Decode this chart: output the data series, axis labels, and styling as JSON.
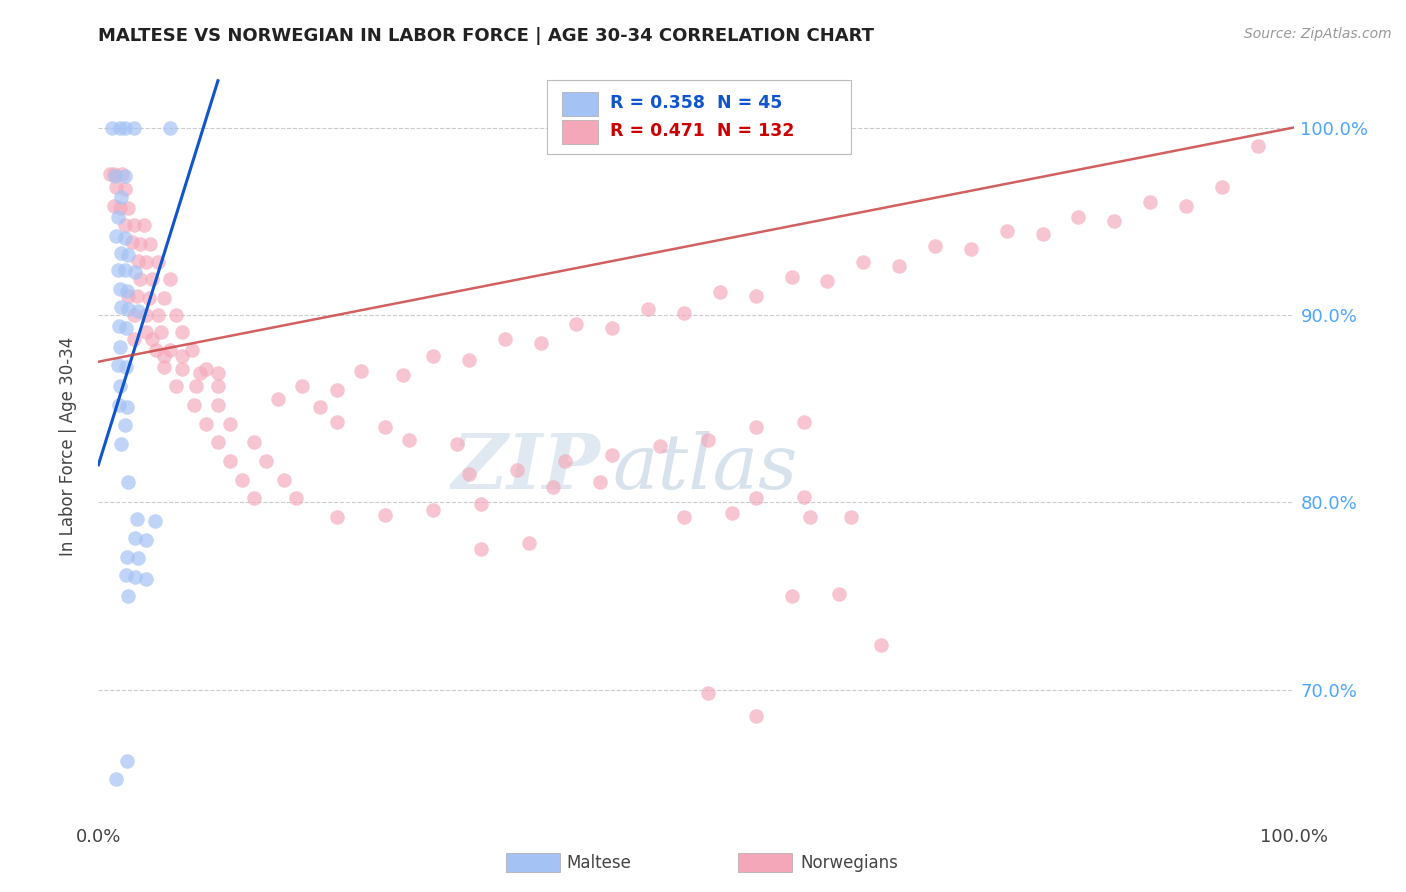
{
  "title": "MALTESE VS NORWEGIAN IN LABOR FORCE | AGE 30-34 CORRELATION CHART",
  "source": "Source: ZipAtlas.com",
  "ylabel": "In Labor Force | Age 30-34",
  "legend_blue_r": "0.358",
  "legend_blue_n": "45",
  "legend_pink_r": "0.471",
  "legend_pink_n": "132",
  "legend_label_blue": "Maltese",
  "legend_label_pink": "Norwegians",
  "blue_color": "#a4c2f4",
  "pink_color": "#f4a7b9",
  "blue_line_color": "#1155cc",
  "pink_line_color": "#cc4444",
  "title_color": "#222222",
  "source_color": "#999999",
  "axis_label_color": "#444444",
  "tick_color": "#444444",
  "right_tick_color": "#4da6ff",
  "grid_color": "#cccccc",
  "blue_scatter": [
    [
      0.011,
      1.0
    ],
    [
      0.018,
      1.0
    ],
    [
      0.022,
      1.0
    ],
    [
      0.03,
      1.0
    ],
    [
      0.06,
      1.0
    ],
    [
      0.014,
      0.974
    ],
    [
      0.022,
      0.974
    ],
    [
      0.019,
      0.963
    ],
    [
      0.016,
      0.952
    ],
    [
      0.015,
      0.942
    ],
    [
      0.022,
      0.941
    ],
    [
      0.019,
      0.933
    ],
    [
      0.025,
      0.932
    ],
    [
      0.016,
      0.924
    ],
    [
      0.022,
      0.924
    ],
    [
      0.031,
      0.923
    ],
    [
      0.018,
      0.914
    ],
    [
      0.024,
      0.913
    ],
    [
      0.019,
      0.904
    ],
    [
      0.025,
      0.903
    ],
    [
      0.033,
      0.902
    ],
    [
      0.017,
      0.894
    ],
    [
      0.023,
      0.893
    ],
    [
      0.018,
      0.883
    ],
    [
      0.016,
      0.873
    ],
    [
      0.023,
      0.872
    ],
    [
      0.018,
      0.862
    ],
    [
      0.017,
      0.852
    ],
    [
      0.024,
      0.851
    ],
    [
      0.022,
      0.841
    ],
    [
      0.019,
      0.831
    ],
    [
      0.025,
      0.811
    ],
    [
      0.032,
      0.791
    ],
    [
      0.047,
      0.79
    ],
    [
      0.031,
      0.781
    ],
    [
      0.04,
      0.78
    ],
    [
      0.024,
      0.771
    ],
    [
      0.033,
      0.77
    ],
    [
      0.023,
      0.761
    ],
    [
      0.031,
      0.76
    ],
    [
      0.04,
      0.759
    ],
    [
      0.025,
      0.75
    ],
    [
      0.024,
      0.662
    ],
    [
      0.015,
      0.652
    ]
  ],
  "pink_scatter": [
    [
      0.01,
      0.975
    ],
    [
      0.013,
      0.975
    ],
    [
      0.02,
      0.975
    ],
    [
      0.015,
      0.968
    ],
    [
      0.022,
      0.967
    ],
    [
      0.013,
      0.958
    ],
    [
      0.018,
      0.957
    ],
    [
      0.025,
      0.957
    ],
    [
      0.022,
      0.948
    ],
    [
      0.03,
      0.948
    ],
    [
      0.038,
      0.948
    ],
    [
      0.028,
      0.939
    ],
    [
      0.035,
      0.938
    ],
    [
      0.043,
      0.938
    ],
    [
      0.033,
      0.929
    ],
    [
      0.04,
      0.928
    ],
    [
      0.05,
      0.928
    ],
    [
      0.035,
      0.919
    ],
    [
      0.045,
      0.919
    ],
    [
      0.06,
      0.919
    ],
    [
      0.025,
      0.91
    ],
    [
      0.032,
      0.91
    ],
    [
      0.042,
      0.909
    ],
    [
      0.055,
      0.909
    ],
    [
      0.03,
      0.9
    ],
    [
      0.04,
      0.9
    ],
    [
      0.05,
      0.9
    ],
    [
      0.065,
      0.9
    ],
    [
      0.04,
      0.891
    ],
    [
      0.052,
      0.891
    ],
    [
      0.07,
      0.891
    ],
    [
      0.048,
      0.881
    ],
    [
      0.06,
      0.881
    ],
    [
      0.078,
      0.881
    ],
    [
      0.055,
      0.872
    ],
    [
      0.07,
      0.871
    ],
    [
      0.09,
      0.871
    ],
    [
      0.065,
      0.862
    ],
    [
      0.082,
      0.862
    ],
    [
      0.1,
      0.862
    ],
    [
      0.08,
      0.852
    ],
    [
      0.1,
      0.852
    ],
    [
      0.09,
      0.842
    ],
    [
      0.11,
      0.842
    ],
    [
      0.1,
      0.832
    ],
    [
      0.13,
      0.832
    ],
    [
      0.11,
      0.822
    ],
    [
      0.14,
      0.822
    ],
    [
      0.12,
      0.812
    ],
    [
      0.155,
      0.812
    ],
    [
      0.13,
      0.802
    ],
    [
      0.165,
      0.802
    ],
    [
      0.03,
      0.887
    ],
    [
      0.045,
      0.887
    ],
    [
      0.055,
      0.878
    ],
    [
      0.07,
      0.878
    ],
    [
      0.085,
      0.869
    ],
    [
      0.1,
      0.869
    ],
    [
      0.15,
      0.855
    ],
    [
      0.185,
      0.851
    ],
    [
      0.2,
      0.843
    ],
    [
      0.24,
      0.84
    ],
    [
      0.26,
      0.833
    ],
    [
      0.3,
      0.831
    ],
    [
      0.17,
      0.862
    ],
    [
      0.2,
      0.86
    ],
    [
      0.22,
      0.87
    ],
    [
      0.255,
      0.868
    ],
    [
      0.28,
      0.878
    ],
    [
      0.31,
      0.876
    ],
    [
      0.34,
      0.887
    ],
    [
      0.37,
      0.885
    ],
    [
      0.4,
      0.895
    ],
    [
      0.43,
      0.893
    ],
    [
      0.46,
      0.903
    ],
    [
      0.49,
      0.901
    ],
    [
      0.52,
      0.912
    ],
    [
      0.55,
      0.91
    ],
    [
      0.58,
      0.92
    ],
    [
      0.61,
      0.918
    ],
    [
      0.64,
      0.928
    ],
    [
      0.67,
      0.926
    ],
    [
      0.7,
      0.937
    ],
    [
      0.73,
      0.935
    ],
    [
      0.76,
      0.945
    ],
    [
      0.79,
      0.943
    ],
    [
      0.82,
      0.952
    ],
    [
      0.85,
      0.95
    ],
    [
      0.88,
      0.96
    ],
    [
      0.91,
      0.958
    ],
    [
      0.94,
      0.968
    ],
    [
      0.97,
      0.99
    ],
    [
      0.31,
      0.815
    ],
    [
      0.35,
      0.817
    ],
    [
      0.39,
      0.822
    ],
    [
      0.43,
      0.825
    ],
    [
      0.47,
      0.83
    ],
    [
      0.51,
      0.833
    ],
    [
      0.55,
      0.84
    ],
    [
      0.59,
      0.843
    ],
    [
      0.2,
      0.792
    ],
    [
      0.24,
      0.793
    ],
    [
      0.28,
      0.796
    ],
    [
      0.32,
      0.799
    ],
    [
      0.38,
      0.808
    ],
    [
      0.42,
      0.811
    ],
    [
      0.55,
      0.802
    ],
    [
      0.59,
      0.803
    ],
    [
      0.32,
      0.775
    ],
    [
      0.36,
      0.778
    ],
    [
      0.49,
      0.792
    ],
    [
      0.53,
      0.794
    ],
    [
      0.595,
      0.792
    ],
    [
      0.63,
      0.792
    ],
    [
      0.58,
      0.75
    ],
    [
      0.62,
      0.751
    ],
    [
      0.655,
      0.724
    ],
    [
      0.51,
      0.698
    ],
    [
      0.55,
      0.686
    ]
  ],
  "xlim": [
    0.0,
    1.0
  ],
  "ylim": [
    0.63,
    1.03
  ],
  "yticks": [
    0.7,
    0.8,
    0.9,
    1.0
  ],
  "ytick_labels": [
    "70.0%",
    "80.0%",
    "90.0%",
    "100.0%"
  ],
  "xticks": [
    0.0,
    1.0
  ],
  "xtick_labels": [
    "0.0%",
    "100.0%"
  ],
  "blue_trend_x": [
    0.0,
    0.1
  ],
  "blue_trend_y": [
    0.82,
    1.025
  ],
  "pink_trend_x": [
    0.0,
    1.0
  ],
  "pink_trend_y": [
    0.875,
    1.0
  ],
  "watermark_zip": "ZIP",
  "watermark_atlas": "atlas",
  "figsize": [
    14.06,
    8.92
  ],
  "dpi": 100
}
